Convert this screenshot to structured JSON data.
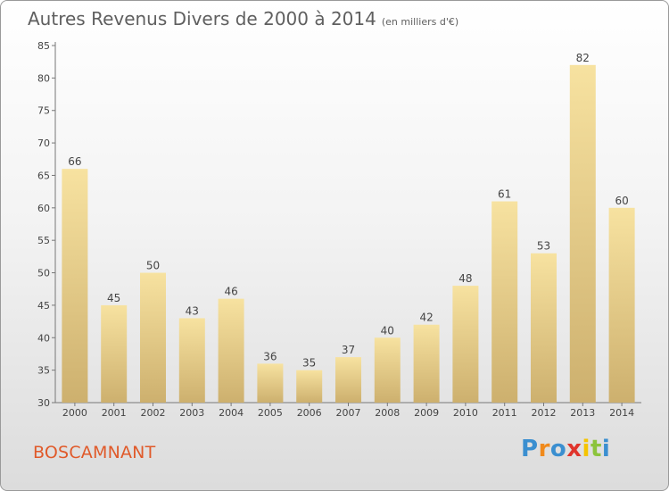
{
  "chart_data": {
    "type": "bar",
    "title": "Autres Revenus Divers de 2000 à 2014",
    "subtitle": "(en milliers d'€)",
    "categories": [
      "2000",
      "2001",
      "2002",
      "2003",
      "2004",
      "2005",
      "2006",
      "2007",
      "2008",
      "2009",
      "2010",
      "2011",
      "2012",
      "2013",
      "2014"
    ],
    "values": [
      66,
      45,
      50,
      43,
      46,
      36,
      35,
      37,
      40,
      42,
      48,
      61,
      53,
      82,
      60
    ],
    "ylim": [
      30,
      85
    ],
    "yticks": [
      30,
      35,
      40,
      45,
      50,
      55,
      60,
      65,
      70,
      75,
      80,
      85
    ],
    "grid": false,
    "bar_color_top": "#f7e2a0",
    "bar_color_bottom": "#cdb06e"
  },
  "place_name": "BOSCAMNANT",
  "logo": {
    "text": "Proxiti",
    "colors": [
      "#3b8fd0",
      "#f08a1c",
      "#3b8fd0",
      "#e0342c",
      "#f5c400",
      "#8cc43c",
      "#3b8fd0"
    ]
  }
}
